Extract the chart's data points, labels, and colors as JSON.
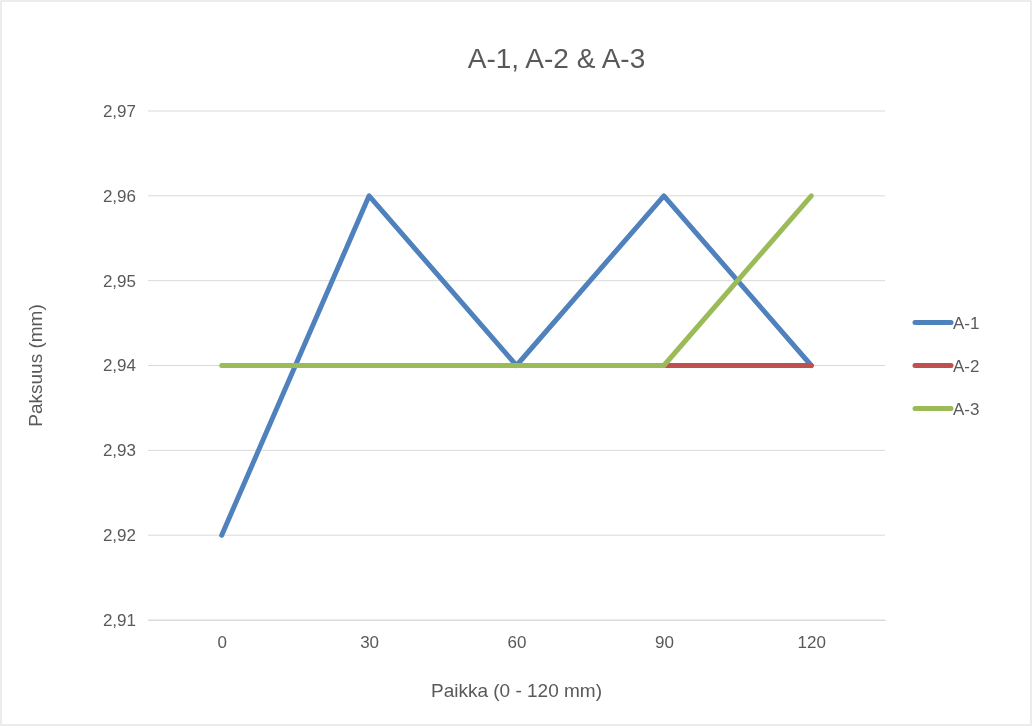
{
  "chart_data": {
    "type": "line",
    "title": "A-1, A-2 & A-3",
    "xlabel": "Paikka (0 - 120 mm)",
    "ylabel": "Paksuus (mm)",
    "categories": [
      "0",
      "30",
      "60",
      "90",
      "120"
    ],
    "series": [
      {
        "name": "A-1",
        "color": "#4f81bd",
        "values": [
          2.92,
          2.96,
          2.94,
          2.96,
          2.94
        ]
      },
      {
        "name": "A-2",
        "color": "#c0504d",
        "values": [
          null,
          null,
          null,
          2.94,
          2.94
        ]
      },
      {
        "name": "A-3",
        "color": "#9bbb59",
        "values": [
          2.94,
          2.94,
          2.94,
          2.94,
          2.96
        ]
      }
    ],
    "ylim": [
      2.91,
      2.97
    ],
    "yticks": [
      {
        "value": 2.91,
        "label": "2,91"
      },
      {
        "value": 2.92,
        "label": "2,92"
      },
      {
        "value": 2.93,
        "label": "2,93"
      },
      {
        "value": 2.94,
        "label": "2,94"
      },
      {
        "value": 2.95,
        "label": "2,95"
      },
      {
        "value": 2.96,
        "label": "2,96"
      },
      {
        "value": 2.97,
        "label": "2,97"
      }
    ],
    "grid": "y",
    "legend": "right",
    "marker": "none",
    "line_style": "solid"
  }
}
